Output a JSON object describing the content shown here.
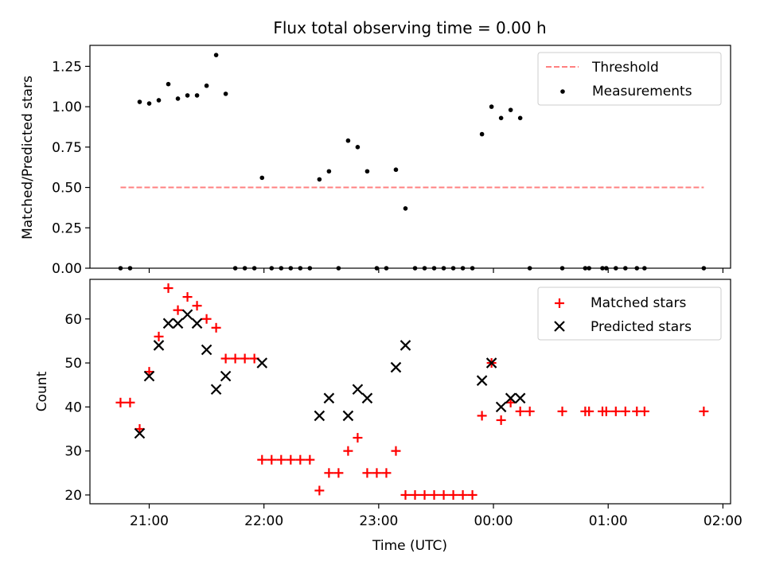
{
  "chart_data": [
    {
      "type": "scatter",
      "title": "Flux total observing time = 0.00 h",
      "xlabel": "",
      "ylabel": "Matched/Predicted stars",
      "ylim": [
        0,
        1.38
      ],
      "xlim": [
        "20:29",
        "02:04"
      ],
      "x_tick_labels": [
        "21:00",
        "22:00",
        "23:00",
        "00:00",
        "01:00",
        "02:00"
      ],
      "y_ticks": [
        0.0,
        0.25,
        0.5,
        0.75,
        1.0,
        1.25
      ],
      "y_tick_labels": [
        "0.00",
        "0.25",
        "0.50",
        "0.75",
        "1.00",
        "1.25"
      ],
      "legend_position": "top-right",
      "grid": false,
      "series": [
        {
          "name": "Threshold",
          "kind": "line",
          "style": "dashed",
          "color": "#ff8080",
          "points": [
            [
              "20:45",
              0.5
            ],
            [
              "23:35",
              0.5
            ],
            [
              "01:50",
              0.5
            ]
          ]
        },
        {
          "name": "Measurements",
          "kind": "scatter",
          "marker": "dot",
          "color": "#000000",
          "points": [
            [
              "20:45",
              0.0
            ],
            [
              "20:50",
              0.0
            ],
            [
              "20:55",
              1.03
            ],
            [
              "21:00",
              1.02
            ],
            [
              "21:05",
              1.04
            ],
            [
              "21:10",
              1.14
            ],
            [
              "21:15",
              1.05
            ],
            [
              "21:20",
              1.07
            ],
            [
              "21:25",
              1.07
            ],
            [
              "21:30",
              1.13
            ],
            [
              "21:35",
              1.32
            ],
            [
              "21:40",
              1.08
            ],
            [
              "21:45",
              0.0
            ],
            [
              "21:50",
              0.0
            ],
            [
              "21:55",
              0.0
            ],
            [
              "21:59",
              0.56
            ],
            [
              "22:04",
              0.0
            ],
            [
              "22:09",
              0.0
            ],
            [
              "22:14",
              0.0
            ],
            [
              "22:19",
              0.0
            ],
            [
              "22:24",
              0.0
            ],
            [
              "22:29",
              0.55
            ],
            [
              "22:34",
              0.6
            ],
            [
              "22:39",
              0.0
            ],
            [
              "22:44",
              0.79
            ],
            [
              "22:49",
              0.75
            ],
            [
              "22:54",
              0.6
            ],
            [
              "22:59",
              0.0
            ],
            [
              "23:04",
              0.0
            ],
            [
              "23:09",
              0.61
            ],
            [
              "23:14",
              0.37
            ],
            [
              "23:19",
              0.0
            ],
            [
              "23:24",
              0.0
            ],
            [
              "23:29",
              0.0
            ],
            [
              "23:34",
              0.0
            ],
            [
              "23:39",
              0.0
            ],
            [
              "23:44",
              0.0
            ],
            [
              "23:49",
              0.0
            ],
            [
              "23:54",
              0.83
            ],
            [
              "23:59",
              1.0
            ],
            [
              "00:04",
              0.93
            ],
            [
              "00:09",
              0.98
            ],
            [
              "00:14",
              0.93
            ],
            [
              "00:19",
              0.0
            ],
            [
              "00:36",
              0.0
            ],
            [
              "00:48",
              0.0
            ],
            [
              "00:50",
              0.0
            ],
            [
              "00:57",
              0.0
            ],
            [
              "00:59",
              0.0
            ],
            [
              "01:04",
              0.0
            ],
            [
              "01:09",
              0.0
            ],
            [
              "01:15",
              0.0
            ],
            [
              "01:19",
              0.0
            ],
            [
              "01:50",
              0.0
            ]
          ]
        }
      ]
    },
    {
      "type": "scatter",
      "title": "",
      "xlabel": "Time (UTC)",
      "ylabel": "Count",
      "ylim": [
        18,
        69
      ],
      "xlim": [
        "20:29",
        "02:04"
      ],
      "x_tick_labels": [
        "21:00",
        "22:00",
        "23:00",
        "00:00",
        "01:00",
        "02:00"
      ],
      "y_ticks": [
        20,
        30,
        40,
        50,
        60
      ],
      "y_tick_labels": [
        "20",
        "30",
        "40",
        "50",
        "60"
      ],
      "legend_position": "top-right",
      "grid": false,
      "series": [
        {
          "name": "Matched stars",
          "kind": "scatter",
          "marker": "plus",
          "color": "#ff0000",
          "points": [
            [
              "20:45",
              41
            ],
            [
              "20:50",
              41
            ],
            [
              "20:55",
              35
            ],
            [
              "21:00",
              48
            ],
            [
              "21:05",
              56
            ],
            [
              "21:10",
              67
            ],
            [
              "21:15",
              62
            ],
            [
              "21:20",
              65
            ],
            [
              "21:25",
              63
            ],
            [
              "21:30",
              60
            ],
            [
              "21:35",
              58
            ],
            [
              "21:40",
              51
            ],
            [
              "21:45",
              51
            ],
            [
              "21:50",
              51
            ],
            [
              "21:55",
              51
            ],
            [
              "21:59",
              28
            ],
            [
              "22:04",
              28
            ],
            [
              "22:09",
              28
            ],
            [
              "22:14",
              28
            ],
            [
              "22:19",
              28
            ],
            [
              "22:24",
              28
            ],
            [
              "22:29",
              21
            ],
            [
              "22:34",
              25
            ],
            [
              "22:39",
              25
            ],
            [
              "22:44",
              30
            ],
            [
              "22:49",
              33
            ],
            [
              "22:54",
              25
            ],
            [
              "22:59",
              25
            ],
            [
              "23:04",
              25
            ],
            [
              "23:09",
              30
            ],
            [
              "23:14",
              20
            ],
            [
              "23:19",
              20
            ],
            [
              "23:24",
              20
            ],
            [
              "23:29",
              20
            ],
            [
              "23:34",
              20
            ],
            [
              "23:39",
              20
            ],
            [
              "23:44",
              20
            ],
            [
              "23:49",
              20
            ],
            [
              "23:54",
              38
            ],
            [
              "23:59",
              50
            ],
            [
              "00:04",
              37
            ],
            [
              "00:09",
              41
            ],
            [
              "00:14",
              39
            ],
            [
              "00:19",
              39
            ],
            [
              "00:36",
              39
            ],
            [
              "00:48",
              39
            ],
            [
              "00:50",
              39
            ],
            [
              "00:57",
              39
            ],
            [
              "00:59",
              39
            ],
            [
              "01:04",
              39
            ],
            [
              "01:09",
              39
            ],
            [
              "01:15",
              39
            ],
            [
              "01:19",
              39
            ],
            [
              "01:50",
              39
            ]
          ]
        },
        {
          "name": "Predicted stars",
          "kind": "scatter",
          "marker": "x",
          "color": "#000000",
          "points": [
            [
              "20:55",
              34
            ],
            [
              "21:00",
              47
            ],
            [
              "21:05",
              54
            ],
            [
              "21:10",
              59
            ],
            [
              "21:15",
              59
            ],
            [
              "21:20",
              61
            ],
            [
              "21:25",
              59
            ],
            [
              "21:30",
              53
            ],
            [
              "21:35",
              44
            ],
            [
              "21:40",
              47
            ],
            [
              "21:59",
              50
            ],
            [
              "22:29",
              38
            ],
            [
              "22:34",
              42
            ],
            [
              "22:44",
              38
            ],
            [
              "22:49",
              44
            ],
            [
              "22:54",
              42
            ],
            [
              "23:09",
              49
            ],
            [
              "23:14",
              54
            ],
            [
              "23:54",
              46
            ],
            [
              "23:59",
              50
            ],
            [
              "00:04",
              40
            ],
            [
              "00:09",
              42
            ],
            [
              "00:14",
              42
            ]
          ]
        }
      ]
    }
  ]
}
